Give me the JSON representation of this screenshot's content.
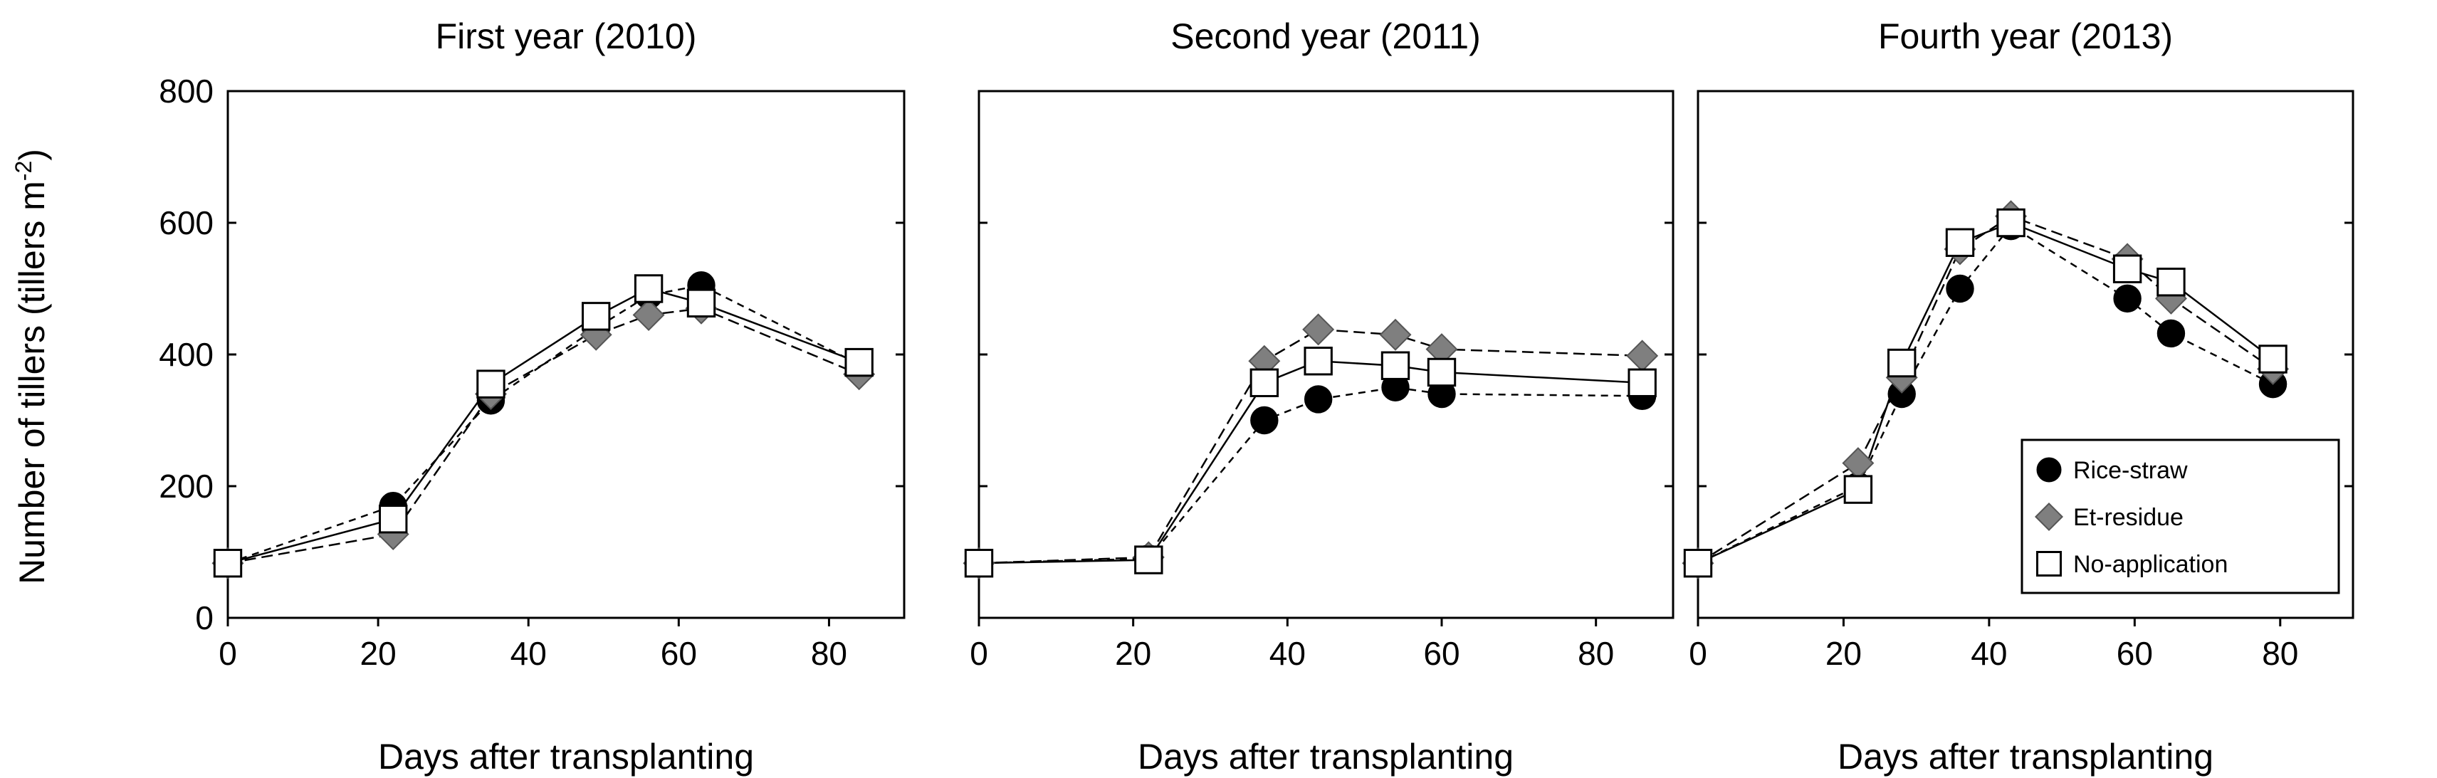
{
  "chart_data": [
    {
      "type": "line",
      "title": "First year (2010)",
      "xlabel": "Days after transplanting",
      "ylabel": "Number of tillers (tillers m-2)",
      "xlim": [
        0,
        90
      ],
      "ylim": [
        0,
        800
      ],
      "xticks": [
        0,
        20,
        40,
        60,
        80
      ],
      "yticks": [
        0,
        200,
        400,
        600,
        800
      ],
      "series": [
        {
          "name": "Rice-straw",
          "x": [
            0,
            22,
            35,
            49,
            56,
            63,
            84
          ],
          "y": [
            83,
            170,
            330,
            440,
            490,
            505,
            385
          ]
        },
        {
          "name": "Et-residue",
          "x": [
            0,
            22,
            35,
            49,
            56,
            63,
            84
          ],
          "y": [
            83,
            127,
            340,
            430,
            460,
            470,
            370
          ]
        },
        {
          "name": "No-application",
          "x": [
            0,
            22,
            35,
            49,
            56,
            63,
            84
          ],
          "y": [
            83,
            150,
            355,
            458,
            500,
            478,
            388
          ]
        }
      ]
    },
    {
      "type": "line",
      "title": "Second year (2011)",
      "xlabel": "Days after transplanting",
      "ylabel": "",
      "xlim": [
        0,
        90
      ],
      "ylim": [
        0,
        800
      ],
      "xticks": [
        0,
        20,
        40,
        60,
        80
      ],
      "yticks": [
        0,
        200,
        400,
        600,
        800
      ],
      "series": [
        {
          "name": "Rice-straw",
          "x": [
            0,
            22,
            37,
            44,
            54,
            60,
            86
          ],
          "y": [
            83,
            90,
            300,
            332,
            350,
            340,
            337
          ]
        },
        {
          "name": "Et-residue",
          "x": [
            0,
            22,
            37,
            44,
            54,
            60,
            86
          ],
          "y": [
            83,
            92,
            390,
            438,
            430,
            408,
            398
          ]
        },
        {
          "name": "No-application",
          "x": [
            0,
            22,
            37,
            44,
            54,
            60,
            86
          ],
          "y": [
            83,
            88,
            357,
            390,
            383,
            373,
            357
          ]
        }
      ]
    },
    {
      "type": "line",
      "title": "Fourth year (2013)",
      "xlabel": "Days after transplanting",
      "ylabel": "",
      "xlim": [
        0,
        90
      ],
      "ylim": [
        0,
        800
      ],
      "xticks": [
        0,
        20,
        40,
        60,
        80
      ],
      "yticks": [
        0,
        200,
        400,
        600,
        800
      ],
      "legend": {
        "position": "bottom-right",
        "entries": [
          "Rice-straw",
          "Et-residue",
          "No-application"
        ]
      },
      "series": [
        {
          "name": "Rice-straw",
          "x": [
            0,
            22,
            28,
            36,
            43,
            59,
            65,
            79
          ],
          "y": [
            83,
            200,
            340,
            500,
            595,
            485,
            432,
            355
          ]
        },
        {
          "name": "Et-residue",
          "x": [
            0,
            22,
            28,
            36,
            43,
            59,
            65,
            79
          ],
          "y": [
            83,
            235,
            365,
            560,
            610,
            545,
            485,
            378
          ]
        },
        {
          "name": "No-application",
          "x": [
            0,
            22,
            28,
            36,
            43,
            59,
            65,
            79
          ],
          "y": [
            83,
            195,
            387,
            570,
            600,
            530,
            510,
            393
          ]
        }
      ]
    }
  ],
  "styles": {
    "Rice-straw": {
      "marker": "circle",
      "color": "#000000",
      "stroke": "#000000",
      "dash": "10,8"
    },
    "Et-residue": {
      "marker": "diamond",
      "color": "#7f7f7f",
      "stroke": "#000000",
      "dash": "16,8"
    },
    "No-application": {
      "marker": "square",
      "color": "#ffffff",
      "stroke": "#000000",
      "dash": ""
    }
  }
}
